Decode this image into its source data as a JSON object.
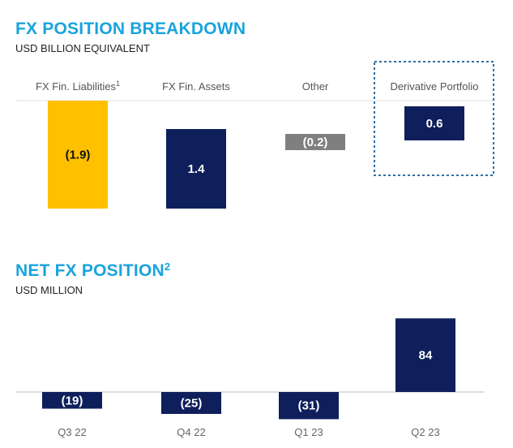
{
  "chart_data": [
    {
      "type": "bar",
      "title": "FX POSITION BREAKDOWN",
      "subtitle": "USD BILLION EQUIVALENT",
      "categories": [
        "FX Fin. Liabilities",
        "FX Fin. Assets",
        "Other",
        "Derivative Portfolio"
      ],
      "category_footnotes": [
        "1",
        "",
        "",
        ""
      ],
      "values": [
        -1.9,
        1.4,
        -0.2,
        0.6
      ],
      "value_labels": [
        "(1.9)",
        "1.4",
        "(0.2)",
        "0.6"
      ],
      "colors": [
        "#ffc000",
        "#0e1f5b",
        "#7f7f7f",
        "#0e1f5b"
      ],
      "label_colors": [
        "#111111",
        "#ffffff",
        "#ffffff",
        "#ffffff"
      ],
      "highlighted_category": "Derivative Portfolio",
      "highlight_color": "#2e6fa8"
    },
    {
      "type": "bar",
      "title": "NET FX POSITION",
      "title_footnote": "2",
      "subtitle": "USD MILLION",
      "categories": [
        "Q3 22",
        "Q4 22",
        "Q1 23",
        "Q2 23"
      ],
      "values": [
        -19,
        -25,
        -31,
        84
      ],
      "value_labels": [
        "(19)",
        "(25)",
        "(31)",
        "84"
      ],
      "bar_color": "#0e1f5b",
      "label_color": "#ffffff",
      "axis_color": "#bfbfbf"
    }
  ]
}
